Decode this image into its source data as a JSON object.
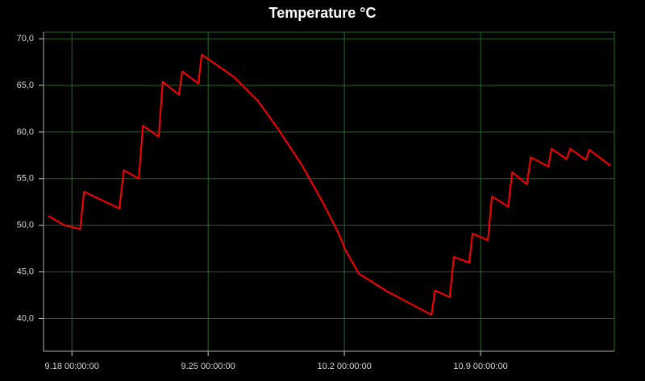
{
  "chart_data": {
    "type": "line",
    "title": "Temperature °C",
    "x": [
      "9.16 19:00:00",
      "9.17 15:00:00",
      "9.18 10:00:00",
      "9.18 15:00:00",
      "9.20 10:30:00",
      "9.20 16:00:00",
      "9.21 10:30:00",
      "9.21 15:30:00",
      "9.22 11:00:00",
      "9.22 16:00:00",
      "9.23 12:00:00",
      "9.23 16:00:00",
      "9.24 12:00:00",
      "9.24 16:00:00",
      "9.26 08:00:00",
      "9.27 13:40:00",
      "9.28 14:30:00",
      "9.29 20:00:00",
      "9.30 21:00:00",
      "10.1 17:00:00",
      "10.2 01:00:00",
      "10.2 18:00:00",
      "10.4 05:00:00",
      "10.6 11:30:00",
      "10.6 16:00:00",
      "10.7 10:00:00",
      "10.7 15:00:00",
      "10.8 10:00:00",
      "10.8 14:00:00",
      "10.9 09:00:00",
      "10.9 14:00:00",
      "10.10 10:00:00",
      "10.10 15:00:00",
      "10.11 09:00:00",
      "10.11 14:00:00",
      "10.12 11:30:00",
      "10.12 15:30:00",
      "10.13 10:00:00",
      "10.13 14:30:00",
      "10.14 10:00:00",
      "10.14 14:00:00",
      "10.15 16:00:00"
    ],
    "series": [
      {
        "color": "#ff0000",
        "values": [
          51.0,
          50.0,
          49.6,
          53.6,
          51.8,
          55.9,
          55.0,
          60.7,
          59.5,
          65.4,
          64.0,
          66.5,
          65.2,
          68.3,
          65.9,
          63.3,
          60.3,
          56.4,
          52.5,
          49.1,
          47.4,
          44.8,
          42.9,
          40.4,
          43.0,
          42.3,
          46.6,
          46.0,
          49.1,
          48.4,
          53.1,
          52.0,
          55.7,
          54.4,
          57.3,
          56.3,
          58.2,
          57.1,
          58.2,
          57.0,
          58.1,
          56.4
        ]
      }
    ],
    "xlim": [
      "9.16 13:00:00",
      "10.15 21:00:00"
    ],
    "xticks": [
      "9.18 00:00:00",
      "9.25 00:00:00",
      "10.2 00:00:00",
      "10.9 00:00:00"
    ],
    "ylim": [
      36.5,
      70.7
    ],
    "yticks": [
      {
        "value": 40,
        "label": "40,0"
      },
      {
        "value": 45,
        "label": "45,0"
      },
      {
        "value": 50,
        "label": "50,0"
      },
      {
        "value": 55,
        "label": "55,0"
      },
      {
        "value": 60,
        "label": "60,0"
      },
      {
        "value": 65,
        "label": "65,0"
      },
      {
        "value": 70,
        "label": "70,0"
      }
    ],
    "grid": true,
    "background": "#000000",
    "grid_color": "#1f6b1f"
  }
}
